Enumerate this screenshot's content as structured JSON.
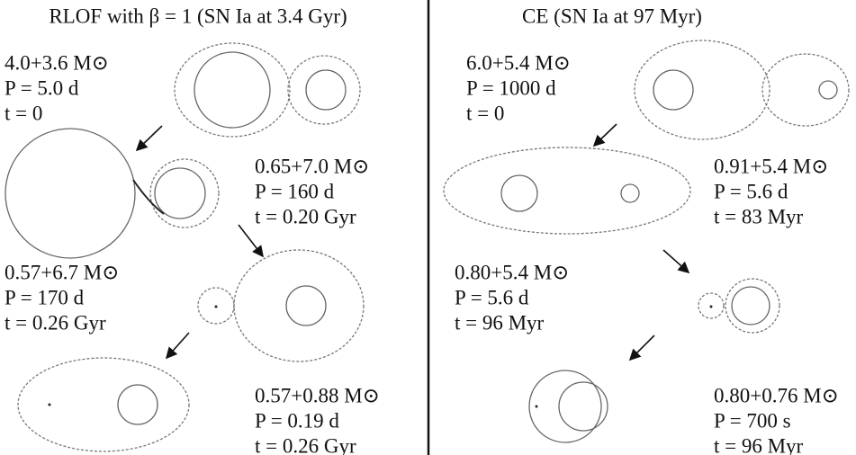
{
  "panels": [
    {
      "title": "RLOF with β = 1 (SN Ia at 3.4 Gyr)",
      "stages": [
        {
          "mass": "4.0+3.6 M⊙",
          "period": "P = 5.0 d",
          "time": "t = 0"
        },
        {
          "mass": "0.65+7.0 M⊙",
          "period": "P = 160 d",
          "time": "t = 0.20 Gyr"
        },
        {
          "mass": "0.57+6.7 M⊙",
          "period": "P = 170 d",
          "time": "t = 0.26 Gyr"
        },
        {
          "mass": "0.57+0.88 M⊙",
          "period": "P = 0.19 d",
          "time": "t = 0.26 Gyr"
        }
      ]
    },
    {
      "title": "CE (SN Ia at 97 Myr)",
      "stages": [
        {
          "mass": "6.0+5.4 M⊙",
          "period": "P = 1000 d",
          "time": "t = 0"
        },
        {
          "mass": "0.91+5.4 M⊙",
          "period": "P = 5.6 d",
          "time": "t = 83 Myr"
        },
        {
          "mass": "0.80+5.4 M⊙",
          "period": "P = 5.6 d",
          "time": "t = 96 Myr"
        },
        {
          "mass": "0.80+0.76 M⊙",
          "period": "P = 700 s",
          "time": "t = 96 Myr"
        }
      ]
    }
  ]
}
